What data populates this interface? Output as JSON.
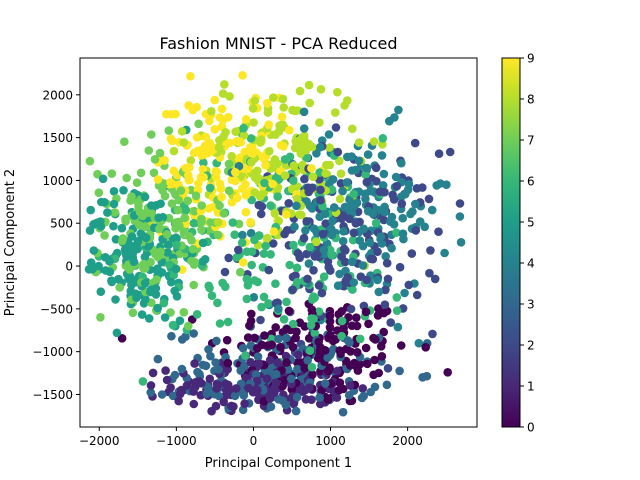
{
  "chart_data": {
    "type": "scatter",
    "title": "Fashion MNIST - PCA Reduced",
    "xlabel": "Principal Component 1",
    "ylabel": "Principal Component 2",
    "xlim": [
      -2250,
      2900
    ],
    "ylim": [
      -1880,
      2430
    ],
    "xticks": [
      -2000,
      -1000,
      0,
      1000,
      2000
    ],
    "xtick_labels": [
      "−2000",
      "−1000",
      "0",
      "1000",
      "2000"
    ],
    "yticks": [
      -1500,
      -1000,
      -500,
      0,
      500,
      1000,
      1500,
      2000
    ],
    "ytick_labels": [
      "−1500",
      "−1000",
      "−500",
      "0",
      "500",
      "1000",
      "1500",
      "2000"
    ],
    "grid": false,
    "colormap": "viridis",
    "colorbar": {
      "range": [
        0,
        9
      ],
      "ticks": [
        0,
        1,
        2,
        3,
        4,
        5,
        6,
        7,
        8,
        9
      ],
      "tick_labels": [
        "0",
        "1",
        "2",
        "3",
        "4",
        "5",
        "6",
        "7",
        "8",
        "9"
      ]
    },
    "class_clusters": [
      {
        "label": 0,
        "cx": 800,
        "cy": -1000,
        "sx": 620,
        "sy": 330
      },
      {
        "label": 1,
        "cx": 80,
        "cy": -1400,
        "sx": 560,
        "sy": 150
      },
      {
        "label": 2,
        "cx": 1150,
        "cy": 300,
        "sx": 650,
        "sy": 520
      },
      {
        "label": 3,
        "cx": 300,
        "cy": -1250,
        "sx": 650,
        "sy": 260
      },
      {
        "label": 4,
        "cx": 1300,
        "cy": 600,
        "sx": 620,
        "sy": 500
      },
      {
        "label": 5,
        "cx": -1500,
        "cy": 150,
        "sx": 380,
        "sy": 420
      },
      {
        "label": 6,
        "cx": 400,
        "cy": 200,
        "sx": 900,
        "sy": 650
      },
      {
        "label": 7,
        "cx": -1200,
        "cy": 500,
        "sx": 450,
        "sy": 450
      },
      {
        "label": 8,
        "cx": 300,
        "cy": 1300,
        "sx": 550,
        "sy": 450
      },
      {
        "label": 9,
        "cx": -400,
        "cy": 1150,
        "sx": 450,
        "sy": 450
      }
    ],
    "points_per_class": 170,
    "marker_color_by": "class label"
  }
}
